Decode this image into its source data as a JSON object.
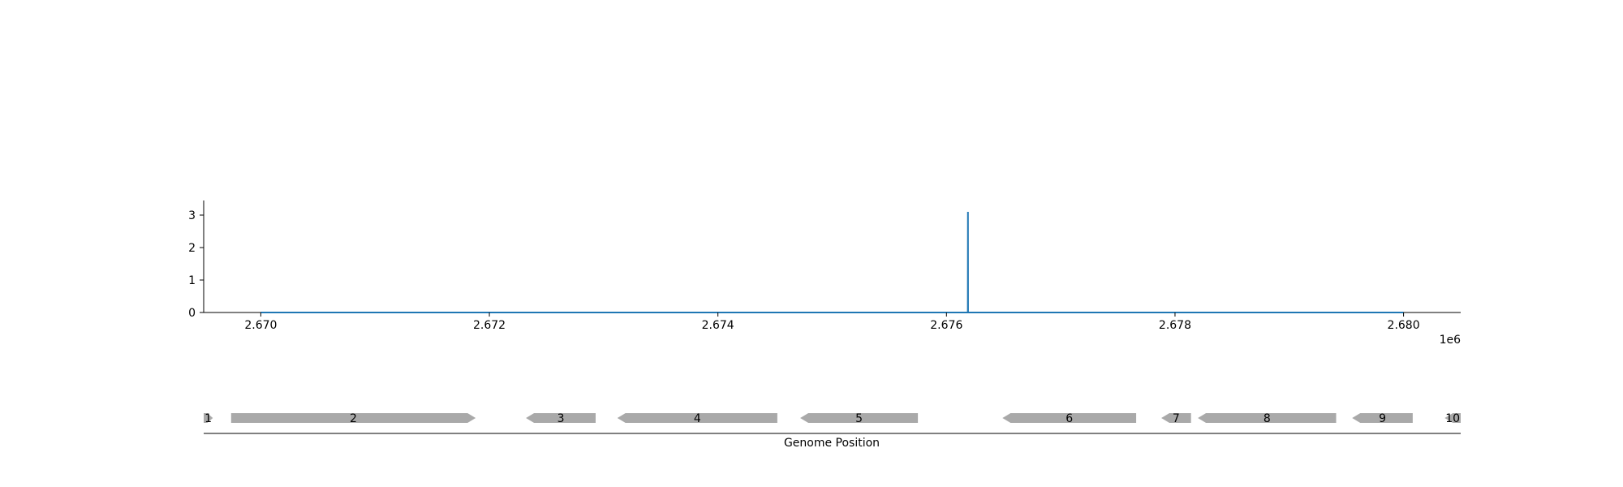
{
  "chart_data": [
    {
      "type": "line",
      "title": "",
      "xlabel": "",
      "ylabel": "",
      "x_offset_label": "1e6",
      "xlim": [
        2669500,
        2680500
      ],
      "ylim": [
        0,
        3.45
      ],
      "x_ticks": [
        2670000,
        2672000,
        2674000,
        2676000,
        2678000,
        2680000
      ],
      "x_tick_labels": [
        "2.670",
        "2.672",
        "2.674",
        "2.676",
        "2.678",
        "2.680"
      ],
      "y_ticks": [
        0,
        1,
        2,
        3
      ],
      "y_tick_labels": [
        "0",
        "1",
        "2",
        "3"
      ],
      "grid": false,
      "legend": "none",
      "series": [
        {
          "color": "#1f77b4",
          "x": [
            2670000,
            2676187,
            2676188,
            2676189,
            2680000
          ],
          "y": [
            0,
            0,
            3.1,
            0,
            0
          ]
        }
      ]
    },
    {
      "type": "gene-track",
      "xlabel": "Genome Position",
      "xlim": [
        2669500,
        2680500
      ],
      "gene_color": "#a9a9a9",
      "genes": [
        {
          "label": "1",
          "start": 2669500,
          "end": 2669580,
          "strand": "+"
        },
        {
          "label": "2",
          "start": 2669740,
          "end": 2671880,
          "strand": "+"
        },
        {
          "label": "3",
          "start": 2672320,
          "end": 2672930,
          "strand": "-"
        },
        {
          "label": "4",
          "start": 2673120,
          "end": 2674520,
          "strand": "-"
        },
        {
          "label": "5",
          "start": 2674720,
          "end": 2675750,
          "strand": "-"
        },
        {
          "label": "6",
          "start": 2676490,
          "end": 2677660,
          "strand": "-"
        },
        {
          "label": "7",
          "start": 2677880,
          "end": 2678140,
          "strand": "-"
        },
        {
          "label": "8",
          "start": 2678200,
          "end": 2679410,
          "strand": "-"
        },
        {
          "label": "9",
          "start": 2679550,
          "end": 2680080,
          "strand": "-"
        },
        {
          "label": "10",
          "start": 2680360,
          "end": 2680500,
          "strand": "-"
        }
      ]
    }
  ]
}
